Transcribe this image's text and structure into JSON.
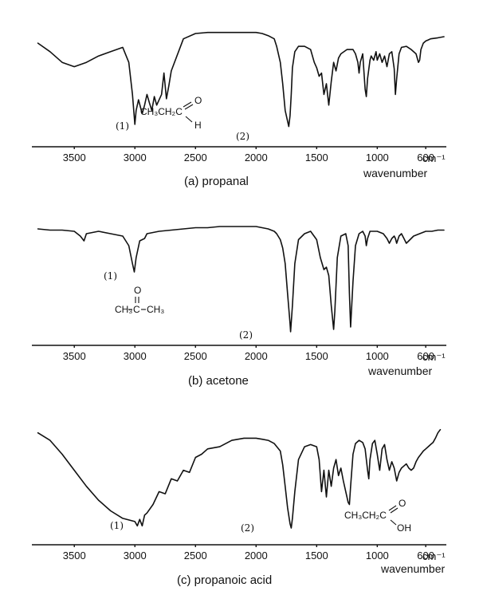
{
  "chart_data": [
    {
      "type": "line",
      "title": "",
      "caption": "(a) propanal",
      "xlabel": "wavenumber",
      "x_unit": "cm⁻¹",
      "x_direction": "decreasing",
      "xlim": [
        3850,
        430
      ],
      "ylim": [
        0,
        100
      ],
      "grid": false,
      "xticks": [
        "3500",
        "3000",
        "2500",
        "2000",
        "1500",
        "1000",
        "600"
      ],
      "series": [
        {
          "x": [
            3800,
            3700,
            3600,
            3500,
            3400,
            3300,
            3200,
            3100,
            3050,
            3020,
            3000,
            2990,
            2970,
            2940,
            2920,
            2900,
            2880,
            2860,
            2840,
            2820,
            2780,
            2760,
            2740,
            2720,
            2700,
            2600,
            2500,
            2400,
            2300,
            2200,
            2100,
            2000,
            1950,
            1900,
            1850,
            1830,
            1800,
            1780,
            1760,
            1740,
            1730,
            1720,
            1710,
            1700,
            1680,
            1650,
            1600,
            1550,
            1520,
            1500,
            1480,
            1460,
            1440,
            1420,
            1400,
            1380,
            1360,
            1340,
            1320,
            1300,
            1250,
            1200,
            1180,
            1160,
            1150,
            1140,
            1120,
            1100,
            1090,
            1080,
            1060,
            1050,
            1030,
            1010,
            1000,
            980,
            960,
            940,
            920,
            900,
            880,
            860,
            850,
            840,
            820,
            800,
            760,
            720,
            680,
            660,
            650,
            640,
            620,
            600,
            580,
            560,
            500,
            450
          ],
          "y": [
            88,
            80,
            70,
            66,
            70,
            76,
            80,
            84,
            70,
            40,
            12,
            25,
            35,
            22,
            30,
            40,
            32,
            25,
            38,
            30,
            40,
            60,
            36,
            48,
            62,
            92,
            97,
            98,
            98,
            98,
            98,
            98,
            97,
            95,
            92,
            85,
            70,
            50,
            25,
            15,
            10,
            20,
            40,
            65,
            80,
            85,
            85,
            82,
            70,
            65,
            57,
            60,
            40,
            50,
            30,
            52,
            70,
            62,
            74,
            78,
            82,
            82,
            78,
            70,
            60,
            70,
            78,
            45,
            38,
            55,
            72,
            76,
            72,
            80,
            72,
            78,
            70,
            76,
            66,
            78,
            80,
            64,
            40,
            55,
            78,
            84,
            85,
            82,
            78,
            70,
            72,
            82,
            88,
            90,
            91,
            92,
            93,
            94
          ]
        }
      ],
      "annotations": [
        "(1)",
        "(2)"
      ],
      "molecule": {
        "label_main": "CH₃CH₂C",
        "label_top": "O",
        "label_bottom": "H"
      }
    },
    {
      "type": "line",
      "title": "",
      "caption": "(b) acetone",
      "xlabel": "wavenumber",
      "x_unit": "cm⁻¹",
      "x_direction": "decreasing",
      "xlim": [
        3850,
        430
      ],
      "ylim": [
        0,
        100
      ],
      "grid": false,
      "xticks": [
        "3500",
        "3000",
        "2500",
        "2000",
        "1500",
        "1000",
        "600"
      ],
      "series": [
        {
          "x": [
            3800,
            3700,
            3600,
            3500,
            3450,
            3420,
            3400,
            3300,
            3200,
            3100,
            3050,
            3020,
            3005,
            2990,
            2960,
            2920,
            2900,
            2800,
            2700,
            2600,
            2500,
            2400,
            2300,
            2200,
            2100,
            2000,
            1950,
            1900,
            1850,
            1830,
            1800,
            1780,
            1760,
            1740,
            1720,
            1715,
            1700,
            1680,
            1650,
            1600,
            1550,
            1500,
            1470,
            1440,
            1420,
            1400,
            1380,
            1360,
            1350,
            1330,
            1300,
            1260,
            1240,
            1230,
            1220,
            1200,
            1180,
            1150,
            1120,
            1100,
            1090,
            1080,
            1060,
            1000,
            950,
            920,
            900,
            880,
            860,
            850,
            840,
            820,
            800,
            780,
            760,
            740,
            700,
            650,
            600,
            550,
            500,
            450
          ],
          "y": [
            94,
            93,
            93,
            92,
            88,
            84,
            90,
            92,
            90,
            88,
            80,
            65,
            58,
            70,
            84,
            86,
            90,
            92,
            93,
            94,
            95,
            95,
            96,
            96,
            96,
            96,
            95,
            94,
            92,
            90,
            85,
            78,
            65,
            40,
            15,
            8,
            30,
            65,
            85,
            90,
            92,
            85,
            70,
            60,
            62,
            55,
            30,
            10,
            25,
            70,
            88,
            90,
            80,
            40,
            12,
            50,
            80,
            90,
            92,
            88,
            80,
            86,
            92,
            92,
            90,
            86,
            82,
            86,
            88,
            86,
            82,
            88,
            90,
            86,
            82,
            84,
            88,
            90,
            92,
            92,
            93,
            93
          ]
        }
      ],
      "annotations": [
        "(1)",
        "(2)"
      ],
      "molecule": {
        "label_left": "CH₃",
        "label_center": "C",
        "label_right": "CH₃",
        "label_top": "O"
      }
    },
    {
      "type": "line",
      "title": "",
      "caption": "(c) propanoic acid",
      "xlabel": "wavenumber",
      "x_unit": "cm⁻¹",
      "x_direction": "decreasing",
      "xlim": [
        3850,
        430
      ],
      "ylim": [
        0,
        100
      ],
      "grid": false,
      "xticks": [
        "3500",
        "3000",
        "2500",
        "2000",
        "1500",
        "1000",
        "600"
      ],
      "series": [
        {
          "x": [
            3800,
            3700,
            3600,
            3500,
            3400,
            3300,
            3200,
            3100,
            3000,
            2980,
            2960,
            2940,
            2920,
            2900,
            2850,
            2800,
            2750,
            2700,
            2650,
            2600,
            2550,
            2500,
            2450,
            2400,
            2300,
            2200,
            2100,
            2000,
            1950,
            1900,
            1850,
            1800,
            1780,
            1760,
            1740,
            1720,
            1710,
            1700,
            1680,
            1650,
            1600,
            1550,
            1500,
            1480,
            1460,
            1440,
            1420,
            1400,
            1380,
            1360,
            1340,
            1320,
            1300,
            1280,
            1260,
            1240,
            1230,
            1220,
            1200,
            1180,
            1150,
            1120,
            1100,
            1080,
            1070,
            1060,
            1040,
            1020,
            1000,
            980,
            960,
            940,
            920,
            900,
            880,
            860,
            840,
            820,
            800,
            780,
            760,
            740,
            720,
            700,
            680,
            660,
            640,
            620,
            600,
            580,
            560,
            540,
            520,
            500,
            480
          ],
          "y": [
            95,
            88,
            75,
            60,
            45,
            32,
            22,
            15,
            12,
            8,
            14,
            8,
            18,
            20,
            28,
            40,
            38,
            52,
            50,
            60,
            58,
            72,
            75,
            80,
            82,
            88,
            90,
            90,
            89,
            88,
            85,
            78,
            65,
            45,
            25,
            10,
            6,
            15,
            40,
            70,
            82,
            84,
            82,
            70,
            40,
            60,
            35,
            60,
            45,
            62,
            70,
            55,
            62,
            50,
            40,
            30,
            28,
            45,
            75,
            85,
            88,
            86,
            80,
            60,
            52,
            70,
            85,
            88,
            75,
            60,
            80,
            84,
            70,
            60,
            68,
            62,
            50,
            58,
            62,
            64,
            66,
            62,
            60,
            62,
            68,
            72,
            75,
            78,
            80,
            82,
            84,
            86,
            90,
            95,
            98
          ]
        }
      ],
      "annotations": [
        "(1)",
        "(2)"
      ],
      "molecule": {
        "label_main": "CH₃CH₂C",
        "label_top": "O",
        "label_bottom": "OH"
      }
    }
  ]
}
